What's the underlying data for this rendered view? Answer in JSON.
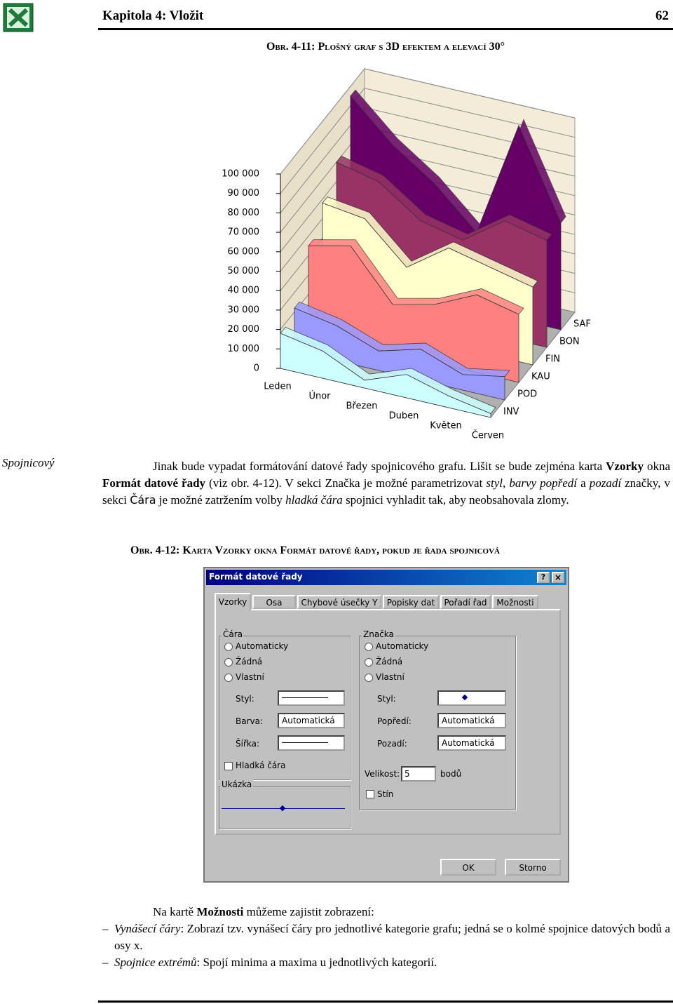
{
  "header": {
    "chapter": "Kapitola 4: Vložit",
    "page_number": "62"
  },
  "figure_1": {
    "caption": "Obr. 4-11: Plošný graf s 3D efektem a elevací 30°",
    "chart": {
      "type": "area3d",
      "categories": [
        "Leden",
        "Únor",
        "Březen",
        "Duben",
        "Květen",
        "Červen"
      ],
      "series": [
        {
          "name": "INV",
          "color": "#ccffff",
          "values": [
            18000,
            14000,
            4000,
            12000,
            6000,
            2000
          ]
        },
        {
          "name": "POD",
          "color": "#9999ff",
          "values": [
            22000,
            18000,
            10000,
            16000,
            8000,
            12000
          ]
        },
        {
          "name": "KAU",
          "color": "#ff8080",
          "values": [
            45000,
            50000,
            25000,
            30000,
            40000,
            35000
          ]
        },
        {
          "name": "FIN",
          "color": "#ffffcc",
          "values": [
            58000,
            55000,
            35000,
            50000,
            45000,
            40000
          ]
        },
        {
          "name": "BON",
          "color": "#993366",
          "values": [
            70000,
            65000,
            50000,
            45000,
            60000,
            55000
          ]
        },
        {
          "name": "SAF",
          "color": "#660066",
          "values": [
            95000,
            75000,
            60000,
            40000,
            100000,
            55000
          ]
        }
      ],
      "ylim": [
        0,
        100000
      ],
      "yticks": [
        0,
        {
          "value": 10000,
          "label": "10 000"
        },
        {
          "value": 20000,
          "label": "20 000"
        },
        {
          "value": 30000,
          "label": "30 000"
        },
        {
          "value": 40000,
          "label": "40 000"
        },
        {
          "value": 50000,
          "label": "50 000"
        },
        {
          "value": 60000,
          "label": "60 000"
        },
        {
          "value": 70000,
          "label": "70 000"
        },
        {
          "value": 80000,
          "label": "80 000"
        },
        {
          "value": 90000,
          "label": "90 000"
        },
        {
          "value": 100000,
          "label": "100 000"
        }
      ],
      "grid": true
    }
  },
  "side_note": "Spojnicový",
  "paragraph": {
    "runs": [
      "Jinak bude vypadat formátování datové řady spojnicového grafu. Lišit se bude zejména karta ",
      "Vzorky",
      " okna ",
      "Formát datové řady",
      " (viz obr. 4-12). V sekci Značka je možné parametrizovat ",
      "styl",
      ", ",
      "barvy popředí",
      " a ",
      "pozadí",
      " značky, v sekci ",
      "Čára",
      " je možné zatržením volby ",
      "hladká čára",
      " spojnici vyhladit tak, aby neobsahovala zlomy."
    ]
  },
  "figure_2": {
    "caption": "Obr. 4-12: Karta Vzorky okna Formát datové řady, pokud je řada spojnicová",
    "dialog": {
      "title": "Formát datové řady",
      "help": "?",
      "close": "×",
      "tabs": [
        "Vzorky",
        "Osa",
        "Chybové úsečky Y",
        "Popisky dat",
        "Pořadí řad",
        "Možnosti"
      ],
      "line_group": {
        "title": "Čára",
        "options": [
          "Automaticky",
          "Žádná",
          "Vlastní"
        ],
        "style_label": "Styl:",
        "color_label": "Barva:",
        "color_value": "Automatická",
        "width_label": "Šířka:",
        "smooth": "Hladká čára"
      },
      "preview_group": {
        "title": "Ukázka"
      },
      "marker_group": {
        "title": "Značka",
        "options": [
          "Automaticky",
          "Žádná",
          "Vlastní"
        ],
        "style_label": "Styl:",
        "foreground_label": "Popředí:",
        "foreground_value": "Automatická",
        "background_label": "Pozadí:",
        "background_value": "Automatická",
        "size_label": "Velikost:",
        "size_value": "5",
        "size_unit": "bodů",
        "shadow": "Stín"
      },
      "buttons": [
        "OK",
        "Storno"
      ]
    }
  },
  "options_intro": {
    "runs": [
      "Na kartě ",
      "Možnosti",
      " můžeme zajistit zobrazení:"
    ]
  },
  "options_list": [
    {
      "term": "Vynášecí čáry",
      "text": ": Zobrazí tzv. vynášecí čáry pro jednotlivé kategorie grafu; jedná se o kolmé spojnice datových bodů a osy x."
    },
    {
      "term": "Spojnice extrémů",
      "text": ": Spojí minima a maxima u jednotlivých kategorií."
    }
  ]
}
